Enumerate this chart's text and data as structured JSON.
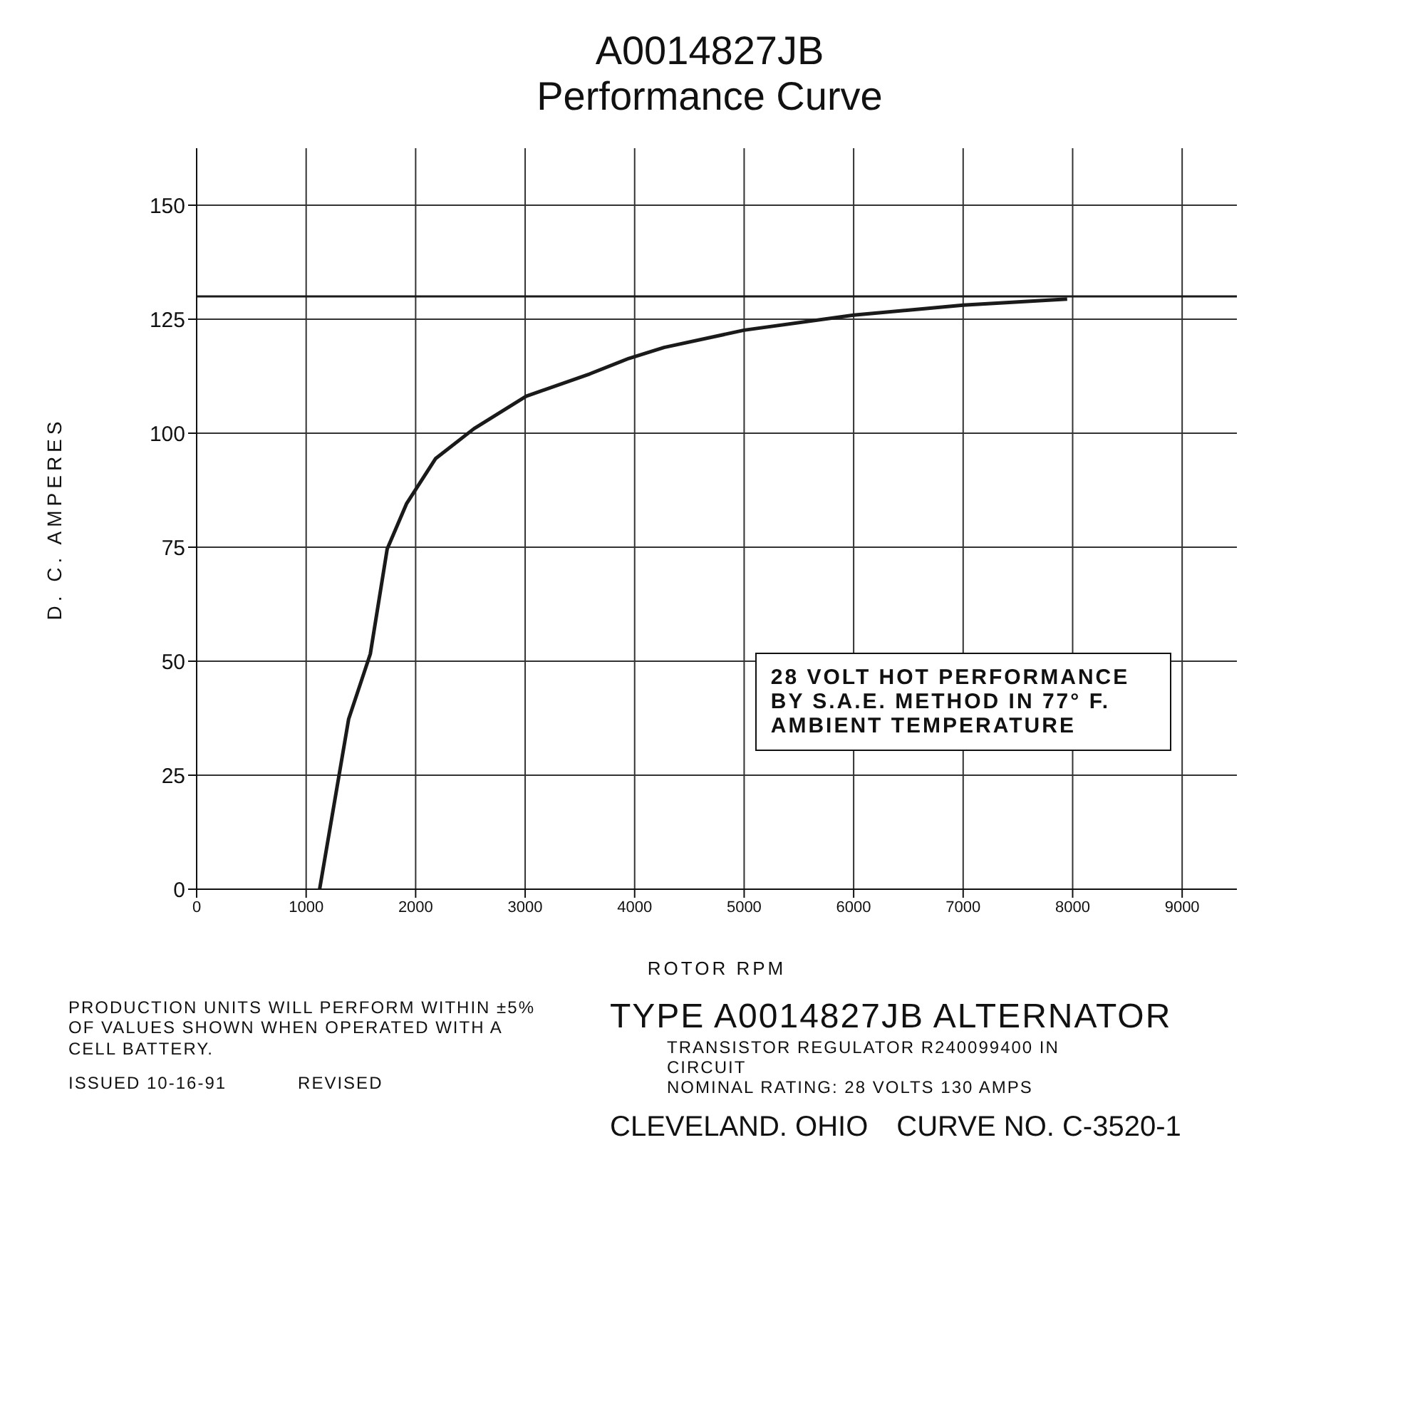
{
  "chart_data": {
    "type": "line",
    "title": "A0014827JB",
    "subtitle": "Performance Curve",
    "xlabel": "ROTOR RPM",
    "ylabel": "D. C. AMPERES",
    "x": [
      1123,
      1388,
      1586,
      1740,
      1916,
      2181,
      2533,
      3009,
      3590,
      3947,
      4269,
      5000,
      6000,
      7000,
      7950
    ],
    "series": [
      {
        "color": "#1a1a1a",
        "values": [
          0,
          37.3,
          51.6,
          74.6,
          84.5,
          94.4,
          101,
          108.1,
          113,
          116.4,
          118.8,
          122.6,
          125.9,
          128.1,
          129.4
        ]
      }
    ],
    "xlim": [
      0,
      9500
    ],
    "xticks": [
      0,
      1000,
      2000,
      3000,
      4000,
      5000,
      6000,
      7000,
      8000,
      9000
    ],
    "ylim": [
      0,
      162.5
    ],
    "yticks": [
      0,
      25,
      50,
      75,
      100,
      125,
      150
    ],
    "grid": true,
    "marker": "none",
    "line_style": "solid",
    "ref_lines": [
      {
        "axis": "y",
        "value": 130,
        "color": "#1a1a1a"
      }
    ],
    "annotations": [
      "28 VOLT HOT PERFORMANCE BY S.A.E. METHOD IN 77° F. AMBIENT TEMPERATURE",
      "PRODUCTION UNITS WILL PERFORM WITHIN ±5% OF VALUES SHOWN WHEN OPERATED WITH A CELL BATTERY.",
      "ISSUED 10-16-91",
      "REVISED",
      "TYPE A0014827JB ALTERNATOR",
      "TRANSISTOR REGULATOR R240099400 IN CIRCUIT",
      "NOMINAL RATING: 28 VOLTS 130 AMPS",
      "CLEVELAND. OHIO",
      "CURVE NO. C-3520-1"
    ]
  }
}
